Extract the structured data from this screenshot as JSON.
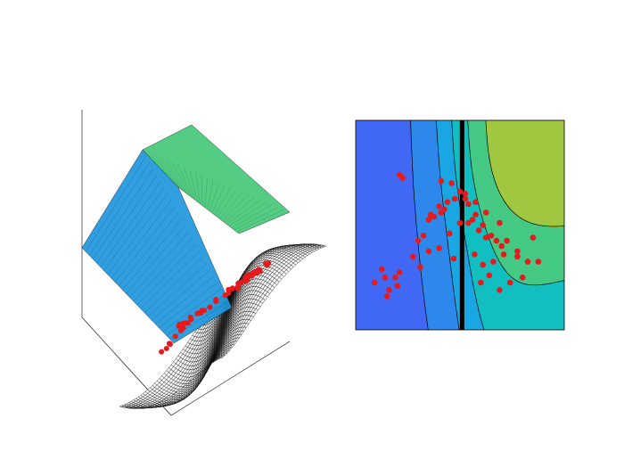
{
  "figure": {
    "background": "#ffffff"
  },
  "chart_data": [
    {
      "type": "surface",
      "title": "",
      "xlabel": "",
      "ylabel": "",
      "zlabel": "",
      "xlim": [
        -1,
        1
      ],
      "ylim": [
        -1,
        1
      ],
      "zlim": [
        -1,
        1
      ],
      "grid": false,
      "surface": {
        "mesh_color": "#000000",
        "facecolor": "#ffffff"
      },
      "overlay_planes": [
        {
          "name": "",
          "color": "#1e96dc"
        },
        {
          "name": "",
          "color": "#46c878"
        }
      ],
      "points": {
        "color": "#e41a1c",
        "x": [
          -0.62,
          -0.55,
          -0.48,
          -0.52,
          -0.4,
          -0.35,
          -0.3,
          -0.45,
          -0.58,
          -0.66,
          -0.38,
          -0.25,
          -0.2,
          -0.15,
          -0.5,
          -0.42,
          -0.32,
          -0.6,
          -0.7,
          -0.28,
          -0.1,
          -0.05,
          0.0,
          0.05,
          0.1,
          -0.08,
          0.02,
          0.12,
          0.18,
          0.25,
          0.3,
          0.22,
          0.15,
          0.35,
          0.4,
          0.28,
          0.08,
          -0.02,
          0.2,
          0.32,
          0.45,
          0.5,
          0.38,
          0.55,
          0.6,
          0.42,
          0.48,
          0.26,
          0.14,
          0.04
        ],
        "y": [
          -0.7,
          -0.6,
          -0.65,
          -0.5,
          -0.55,
          -0.45,
          -0.6,
          -0.4,
          -0.35,
          -0.55,
          -0.3,
          -0.5,
          -0.25,
          -0.4,
          -0.2,
          -0.1,
          -0.15,
          -0.25,
          -0.45,
          0.0,
          -0.3,
          -0.1,
          0.05,
          -0.2,
          0.1,
          0.2,
          0.3,
          0.0,
          0.15,
          0.25,
          0.1,
          0.4,
          0.35,
          0.2,
          0.3,
          0.05,
          0.45,
          0.5,
          0.55,
          0.45,
          0.25,
          0.15,
          0.6,
          0.4,
          0.2,
          0.5,
          0.05,
          -0.05,
          0.6,
          0.7
        ],
        "z": [
          -0.3,
          -0.2,
          -0.25,
          -0.1,
          -0.05,
          0.0,
          -0.15,
          0.05,
          0.1,
          -0.2,
          0.1,
          -0.05,
          0.15,
          0.05,
          0.2,
          0.25,
          0.2,
          0.1,
          -0.1,
          0.3,
          0.1,
          0.25,
          0.35,
          0.2,
          0.4,
          0.45,
          0.5,
          0.35,
          0.45,
          0.5,
          0.4,
          0.6,
          0.55,
          0.5,
          0.55,
          0.35,
          0.65,
          0.7,
          0.7,
          0.65,
          0.5,
          0.45,
          0.75,
          0.6,
          0.45,
          0.7,
          0.35,
          0.3,
          0.75,
          0.8
        ]
      }
    },
    {
      "type": "contour",
      "title": "",
      "xlabel": "",
      "ylabel": "",
      "xlim": [
        -1,
        1
      ],
      "ylim": [
        -1,
        1
      ],
      "grid": false,
      "colormap": [
        "#4169f5",
        "#2e88ec",
        "#1aa6e2",
        "#12bfc0",
        "#45c984",
        "#a1c740"
      ],
      "contour_line_color": "#000000",
      "vertical_line": {
        "x": 0.02,
        "color": "#000000"
      },
      "points": {
        "color": "#e41a1c",
        "x": [
          -0.82,
          -0.72,
          -0.68,
          -0.6,
          -0.75,
          -0.7,
          -0.62,
          -0.58,
          -0.45,
          -0.4,
          -0.35,
          -0.3,
          -0.25,
          -0.2,
          -0.15,
          -0.12,
          -0.05,
          0.0,
          0.05,
          0.08,
          -0.38,
          -0.3,
          -0.2,
          -0.1,
          -0.06,
          -0.28,
          -0.18,
          0.0,
          0.08,
          0.12,
          0.15,
          0.18,
          0.22,
          0.25,
          0.3,
          0.35,
          0.4,
          0.45,
          0.55,
          0.65,
          0.6,
          0.48,
          0.38,
          0.28,
          0.2,
          0.32,
          0.22,
          0.14,
          0.42,
          0.55,
          0.7,
          0.75,
          0.38,
          0.25,
          0.15,
          0.05,
          -0.08,
          -0.18,
          -0.55,
          -0.58
        ],
        "y": [
          -0.55,
          -0.5,
          -0.62,
          -0.58,
          -0.42,
          -0.68,
          -0.5,
          -0.45,
          -0.3,
          -0.15,
          -0.1,
          0.05,
          0.08,
          0.18,
          0.15,
          0.22,
          0.25,
          0.32,
          0.25,
          0.02,
          -0.4,
          -0.25,
          -0.22,
          -0.08,
          -0.32,
          0.1,
          0.12,
          0.02,
          0.2,
          0.05,
          0.1,
          -0.05,
          0.0,
          -0.12,
          -0.1,
          -0.15,
          -0.2,
          -0.15,
          -0.3,
          -0.35,
          -0.5,
          -0.55,
          -0.62,
          -0.48,
          -0.55,
          -0.35,
          -0.38,
          -0.28,
          -0.28,
          -0.25,
          -0.12,
          -0.35,
          0.02,
          0.12,
          0.22,
          0.3,
          0.4,
          0.42,
          0.45,
          0.48
        ]
      }
    }
  ]
}
